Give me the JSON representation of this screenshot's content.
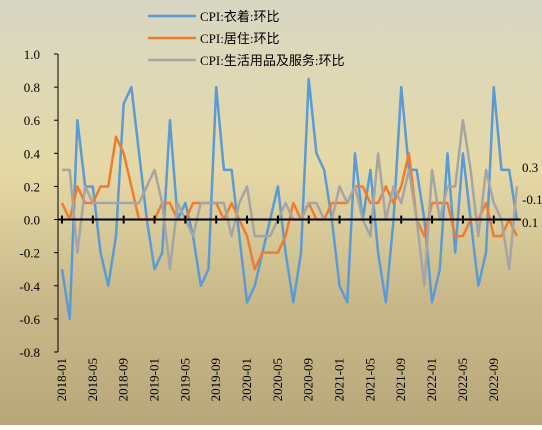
{
  "chart_data": {
    "type": "line",
    "categories": [
      "2018-01",
      null,
      null,
      null,
      "2018-05",
      null,
      null,
      null,
      "2018-09",
      null,
      null,
      null,
      "2019-01",
      null,
      null,
      null,
      "2019-05",
      null,
      null,
      null,
      "2019-09",
      null,
      null,
      null,
      "2020-01",
      null,
      null,
      null,
      "2020-05",
      null,
      null,
      null,
      "2020-09",
      null,
      null,
      null,
      "2021-01",
      null,
      null,
      null,
      "2021-05",
      null,
      null,
      null,
      "2021-09",
      null,
      null,
      null,
      "2022-01",
      null,
      null,
      null,
      "2022-05",
      null,
      null,
      null,
      "2022-09",
      null,
      null,
      null
    ],
    "series": [
      {
        "name": "CPI:衣着:环比",
        "color": "#5b9bd5",
        "values": [
          -0.3,
          -0.6,
          0.6,
          0.2,
          0.2,
          -0.2,
          -0.4,
          -0.1,
          0.7,
          0.8,
          0.4,
          0.0,
          -0.3,
          -0.2,
          0.6,
          0.0,
          0.1,
          -0.1,
          -0.4,
          -0.3,
          0.8,
          0.3,
          0.3,
          -0.1,
          -0.5,
          -0.4,
          -0.2,
          0.0,
          0.2,
          -0.2,
          -0.5,
          -0.2,
          0.85,
          0.4,
          0.3,
          0.0,
          -0.4,
          -0.5,
          0.4,
          0.0,
          0.3,
          -0.2,
          -0.5,
          0.0,
          0.8,
          0.3,
          0.3,
          0.0,
          -0.5,
          -0.3,
          0.4,
          -0.2,
          0.4,
          0.0,
          -0.4,
          -0.2,
          0.8,
          0.3,
          0.3,
          0.0
        ]
      },
      {
        "name": "CPI:居住:环比",
        "color": "#ed7d31",
        "values": [
          0.1,
          0.0,
          0.2,
          0.1,
          0.1,
          0.2,
          0.2,
          0.5,
          0.4,
          0.2,
          0.0,
          0.0,
          0.0,
          0.1,
          0.1,
          0.0,
          0.0,
          0.1,
          0.1,
          0.1,
          0.1,
          0.0,
          0.1,
          0.0,
          -0.1,
          -0.3,
          -0.2,
          -0.2,
          -0.2,
          -0.1,
          0.1,
          0.0,
          0.1,
          0.0,
          0.0,
          0.1,
          0.1,
          0.1,
          0.2,
          0.2,
          0.1,
          0.1,
          0.2,
          0.1,
          0.2,
          0.4,
          0.0,
          -0.1,
          0.1,
          0.1,
          0.1,
          -0.1,
          -0.1,
          0.0,
          0.0,
          0.1,
          -0.1,
          -0.1,
          0.0,
          -0.1
        ]
      },
      {
        "name": "CPI:生活用品及服务:环比",
        "color": "#a5a5a5",
        "values": [
          0.3,
          0.3,
          -0.2,
          0.2,
          0.1,
          0.1,
          0.1,
          0.1,
          0.1,
          0.1,
          0.1,
          0.2,
          0.3,
          0.1,
          -0.3,
          0.1,
          0.0,
          -0.1,
          0.1,
          0.1,
          0.1,
          0.1,
          -0.1,
          0.1,
          0.2,
          -0.1,
          -0.1,
          -0.1,
          0.0,
          0.1,
          0.0,
          0.0,
          0.1,
          0.1,
          0.0,
          0.0,
          0.2,
          0.1,
          0.2,
          0.0,
          -0.1,
          0.4,
          0.0,
          0.2,
          0.1,
          0.3,
          0.0,
          -0.4,
          0.3,
          0.0,
          0.2,
          0.2,
          0.6,
          0.3,
          -0.1,
          0.3,
          0.1,
          0.0,
          -0.3,
          0.2
        ]
      }
    ],
    "ylim": [
      -0.8,
      1.0
    ],
    "yticks": [
      {
        "value": 1,
        "label": "1.0"
      },
      0.8,
      0.6,
      0.4,
      0.2,
      {
        "value": 0,
        "label": "0.0"
      },
      -0.2,
      -0.4,
      -0.6,
      -0.8
    ],
    "annotations": [
      "0.3",
      "-0.1",
      "0.1"
    ],
    "legend": "top"
  }
}
